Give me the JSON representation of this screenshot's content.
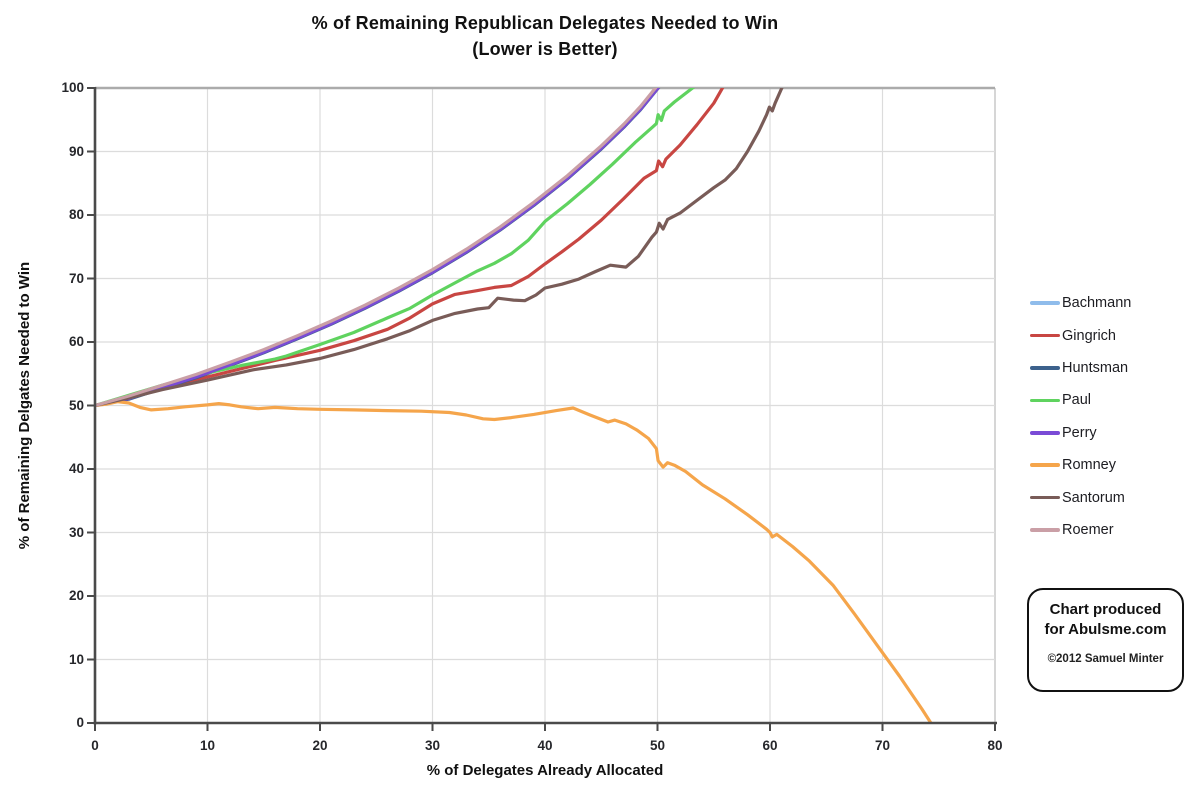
{
  "title": {
    "line1": "% of Remaining Republican Delegates Needed to Win",
    "line2": "(Lower is Better)"
  },
  "axes": {
    "x": {
      "label": "% of Delegates Already Allocated",
      "min": 0,
      "max": 80,
      "ticks": [
        0,
        10,
        20,
        30,
        40,
        50,
        60,
        70,
        80
      ]
    },
    "y": {
      "label": "% of Remaining Delgates Needed to Win",
      "min": 0,
      "max": 100,
      "ticks": [
        0,
        10,
        20,
        30,
        40,
        50,
        60,
        70,
        80,
        90,
        100
      ]
    }
  },
  "credit": {
    "line1": "Chart produced",
    "line2": "for Abulsme.com",
    "copyright": "©2012 Samuel Minter"
  },
  "colors": {
    "grid": "#DCDCDC",
    "grid_top": "#ABABAB",
    "grid_right": "#C9C9C9",
    "axis": "#4A4A4A"
  },
  "chart_data": {
    "type": "line",
    "title": "% of Remaining Republican Delegates Needed to Win (Lower is Better)",
    "xlabel": "% of Delegates Already Allocated",
    "ylabel": "% of Remaining Delgates Needed to Win",
    "xlim": [
      0,
      80
    ],
    "ylim": [
      0,
      100
    ],
    "grid": true,
    "legend_position": "right",
    "series": [
      {
        "name": "Bachmann",
        "color": "#8FBCEB",
        "points": [
          [
            0,
            50
          ],
          [
            3,
            51.05
          ],
          [
            6,
            52.75
          ],
          [
            9,
            54.45
          ],
          [
            12,
            56.35
          ],
          [
            15,
            58.35
          ],
          [
            18,
            60.55
          ],
          [
            21,
            62.85
          ],
          [
            24,
            65.35
          ],
          [
            27,
            68.05
          ],
          [
            30,
            70.95
          ],
          [
            33,
            74.15
          ],
          [
            36,
            77.65
          ],
          [
            39,
            81.55
          ],
          [
            42,
            85.75
          ],
          [
            45,
            90.45
          ],
          [
            47,
            93.85
          ],
          [
            48.5,
            96.65
          ],
          [
            50.2,
            100.4
          ]
        ]
      },
      {
        "name": "Gingrich",
        "color": "#C84642",
        "points": [
          [
            0,
            50
          ],
          [
            3,
            51.3
          ],
          [
            6,
            52.9
          ],
          [
            10,
            54.5
          ],
          [
            13,
            55.8
          ],
          [
            16,
            57.1
          ],
          [
            20,
            58.7
          ],
          [
            23,
            60.2
          ],
          [
            26,
            62
          ],
          [
            28,
            63.8
          ],
          [
            30,
            66
          ],
          [
            32,
            67.5
          ],
          [
            34,
            68.1
          ],
          [
            35.5,
            68.6
          ],
          [
            37,
            68.9
          ],
          [
            38.5,
            70.3
          ],
          [
            40,
            72.3
          ],
          [
            41.5,
            74.2
          ],
          [
            43,
            76.2
          ],
          [
            45,
            79.2
          ],
          [
            47,
            82.6
          ],
          [
            48.8,
            85.8
          ],
          [
            49.9,
            87
          ],
          [
            50.1,
            88.5
          ],
          [
            50.45,
            87.6
          ],
          [
            50.75,
            88.8
          ],
          [
            52,
            91
          ],
          [
            53.5,
            94.2
          ],
          [
            55,
            97.6
          ],
          [
            55.9,
            100.4
          ]
        ]
      },
      {
        "name": "Huntsman",
        "color": "#3C618C",
        "points": [
          [
            0,
            50
          ],
          [
            3,
            51
          ],
          [
            6,
            52.7
          ],
          [
            9,
            54.4
          ],
          [
            12,
            56.3
          ],
          [
            15,
            58.3
          ],
          [
            18,
            60.5
          ],
          [
            21,
            62.8
          ],
          [
            24,
            65.3
          ],
          [
            27,
            68
          ],
          [
            30,
            70.9
          ],
          [
            33,
            74.1
          ],
          [
            36,
            77.6
          ],
          [
            39,
            81.5
          ],
          [
            42,
            85.7
          ],
          [
            45,
            90.4
          ],
          [
            47,
            93.8
          ],
          [
            48.5,
            96.6
          ],
          [
            50.2,
            100.3
          ]
        ]
      },
      {
        "name": "Paul",
        "color": "#5FD35F",
        "points": [
          [
            0,
            50
          ],
          [
            3,
            51.6
          ],
          [
            6,
            53.2
          ],
          [
            10,
            55.1
          ],
          [
            13,
            56.3
          ],
          [
            16,
            57.3
          ],
          [
            17,
            57.8
          ],
          [
            20,
            59.6
          ],
          [
            23,
            61.5
          ],
          [
            26,
            63.8
          ],
          [
            28,
            65.3
          ],
          [
            30,
            67.4
          ],
          [
            32,
            69.3
          ],
          [
            34,
            71.2
          ],
          [
            35.5,
            72.4
          ],
          [
            37,
            73.9
          ],
          [
            38.5,
            76
          ],
          [
            40,
            79
          ],
          [
            42,
            81.8
          ],
          [
            44,
            84.8
          ],
          [
            46,
            88
          ],
          [
            48,
            91.4
          ],
          [
            49.6,
            93.9
          ],
          [
            49.9,
            94.4
          ],
          [
            50.05,
            95.8
          ],
          [
            50.35,
            94.9
          ],
          [
            50.6,
            96.4
          ],
          [
            51.5,
            97.8
          ],
          [
            53.4,
            100.4
          ]
        ]
      },
      {
        "name": "Perry",
        "color": "#7A4BD6",
        "points": [
          [
            0,
            50
          ],
          [
            3,
            51.1
          ],
          [
            6,
            52.8
          ],
          [
            9,
            54.5
          ],
          [
            12,
            56.4
          ],
          [
            15,
            58.4
          ],
          [
            18,
            60.6
          ],
          [
            21,
            62.9
          ],
          [
            24,
            65.4
          ],
          [
            27,
            68.1
          ],
          [
            30,
            71
          ],
          [
            33,
            74.2
          ],
          [
            36,
            77.7
          ],
          [
            39,
            81.6
          ],
          [
            42,
            85.8
          ],
          [
            45,
            90.5
          ],
          [
            47,
            93.9
          ],
          [
            48.5,
            96.7
          ],
          [
            50.2,
            100.35
          ]
        ]
      },
      {
        "name": "Romney",
        "color": "#F5A54B",
        "points": [
          [
            0,
            50
          ],
          [
            1,
            50.2
          ],
          [
            2,
            50.6
          ],
          [
            3,
            50.4
          ],
          [
            4,
            49.7
          ],
          [
            5,
            49.3
          ],
          [
            6.5,
            49.5
          ],
          [
            8,
            49.8
          ],
          [
            10,
            50.1
          ],
          [
            11,
            50.3
          ],
          [
            12,
            50.1
          ],
          [
            13,
            49.8
          ],
          [
            14.5,
            49.5
          ],
          [
            16,
            49.7
          ],
          [
            18,
            49.5
          ],
          [
            20,
            49.4
          ],
          [
            23,
            49.3
          ],
          [
            26,
            49.2
          ],
          [
            29,
            49.1
          ],
          [
            31.5,
            48.9
          ],
          [
            33,
            48.5
          ],
          [
            34.5,
            47.9
          ],
          [
            35.5,
            47.8
          ],
          [
            37,
            48.1
          ],
          [
            39,
            48.6
          ],
          [
            41,
            49.2
          ],
          [
            42.5,
            49.6
          ],
          [
            44,
            48.5
          ],
          [
            45.6,
            47.4
          ],
          [
            46.2,
            47.7
          ],
          [
            47.2,
            47.1
          ],
          [
            48.2,
            46.1
          ],
          [
            49.2,
            44.8
          ],
          [
            49.9,
            43.2
          ],
          [
            50.05,
            41.3
          ],
          [
            50.5,
            40.3
          ],
          [
            50.9,
            41
          ],
          [
            51.5,
            40.6
          ],
          [
            52.5,
            39.6
          ],
          [
            54,
            37.5
          ],
          [
            56,
            35.3
          ],
          [
            58,
            32.8
          ],
          [
            59.7,
            30.5
          ],
          [
            60,
            30
          ],
          [
            60.2,
            29.3
          ],
          [
            60.6,
            29.7
          ],
          [
            62,
            27.8
          ],
          [
            63.5,
            25.5
          ],
          [
            65.6,
            21.7
          ],
          [
            67.5,
            17.2
          ],
          [
            69.5,
            12.3
          ],
          [
            71.5,
            7.4
          ],
          [
            73.5,
            2.2
          ],
          [
            74.3,
            0
          ]
        ]
      },
      {
        "name": "Santorum",
        "color": "#795C58",
        "points": [
          [
            0,
            50
          ],
          [
            3,
            51.2
          ],
          [
            6,
            52.5
          ],
          [
            10,
            54
          ],
          [
            14,
            55.6
          ],
          [
            17,
            56.4
          ],
          [
            20,
            57.4
          ],
          [
            23,
            58.8
          ],
          [
            26,
            60.5
          ],
          [
            28,
            61.8
          ],
          [
            30,
            63.4
          ],
          [
            32,
            64.5
          ],
          [
            34,
            65.2
          ],
          [
            35,
            65.4
          ],
          [
            35.8,
            66.9
          ],
          [
            37.2,
            66.6
          ],
          [
            38.2,
            66.5
          ],
          [
            39.2,
            67.4
          ],
          [
            40,
            68.5
          ],
          [
            41.5,
            69.1
          ],
          [
            43,
            69.9
          ],
          [
            44.5,
            71.1
          ],
          [
            45.8,
            72.1
          ],
          [
            47.2,
            71.8
          ],
          [
            48.3,
            73.5
          ],
          [
            49.5,
            76.5
          ],
          [
            49.9,
            77.3
          ],
          [
            50.15,
            78.7
          ],
          [
            50.5,
            77.8
          ],
          [
            50.9,
            79.3
          ],
          [
            52,
            80.3
          ],
          [
            53.5,
            82.3
          ],
          [
            55,
            84.3
          ],
          [
            56,
            85.5
          ],
          [
            57,
            87.3
          ],
          [
            58,
            90
          ],
          [
            59,
            93.2
          ],
          [
            59.7,
            95.8
          ],
          [
            59.95,
            97
          ],
          [
            60.2,
            96.4
          ],
          [
            60.45,
            97.6
          ],
          [
            61.15,
            100.4
          ]
        ]
      },
      {
        "name": "Roemer",
        "color": "#CA9FA6",
        "points": [
          [
            0,
            50
          ],
          [
            3,
            51.5
          ],
          [
            6,
            53.2
          ],
          [
            9,
            54.9
          ],
          [
            12,
            56.8
          ],
          [
            15,
            58.8
          ],
          [
            18,
            61
          ],
          [
            21,
            63.3
          ],
          [
            24,
            65.8
          ],
          [
            27,
            68.5
          ],
          [
            30,
            71.4
          ],
          [
            33,
            74.6
          ],
          [
            36,
            78.1
          ],
          [
            39,
            82
          ],
          [
            42,
            86.2
          ],
          [
            45,
            90.9
          ],
          [
            47,
            94.3
          ],
          [
            48.5,
            97.1
          ],
          [
            50,
            100.4
          ]
        ]
      }
    ]
  }
}
